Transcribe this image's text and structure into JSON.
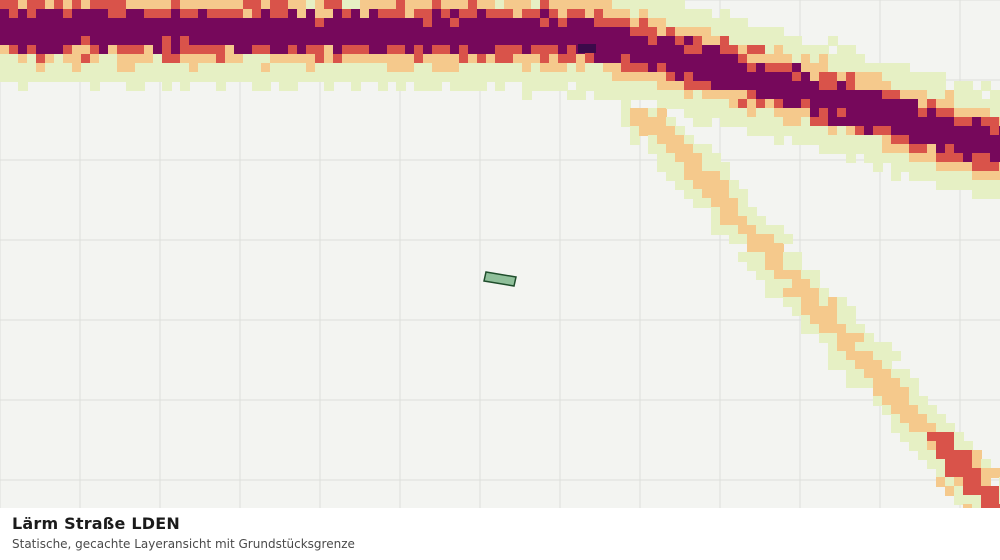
{
  "caption": {
    "title": "Lärm Straße LDEN",
    "subtitle": "Statische, gecachte Layeransicht mit Grundstücksgrenze"
  },
  "map": {
    "background_color": "#f3f4f1",
    "grid_color": "#dcdedb",
    "noise_classes": [
      {
        "level": 1,
        "color": "#e6f0c4"
      },
      {
        "level": 2,
        "color": "#f5c98c"
      },
      {
        "level": 3,
        "color": "#d9534a"
      },
      {
        "level": 4,
        "color": "#76085b"
      },
      {
        "level": 5,
        "color": "#3b0a4a"
      }
    ],
    "parcel": {
      "fill": "#8fbf9a",
      "stroke": "#1e4d2b"
    }
  }
}
